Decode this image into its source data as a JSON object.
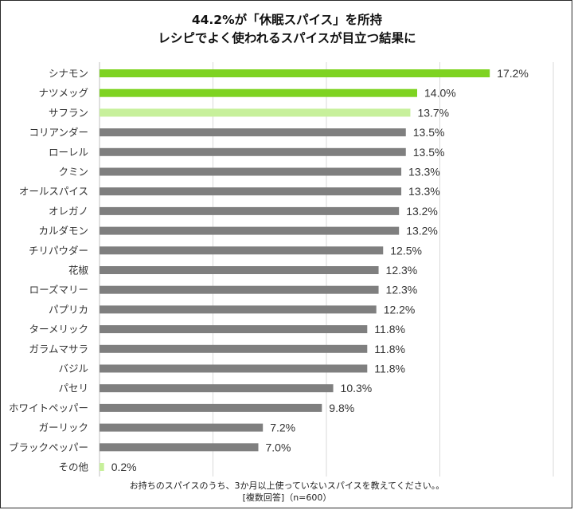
{
  "title_line1": "44.2%が「休眠スパイス」を所持",
  "title_line2": "レシピでよく使われるスパイスが目立つ結果に",
  "footnote_line1": "お持ちのスパイスのうち、3か月以上使っていないスパイスを教えてください。。",
  "footnote_line2": "[複数回答]（n=600）",
  "colors": {
    "highlight": "#7ed321",
    "light_highlight": "#c7f09b",
    "default": "#7f7f7f",
    "gridline": "#d9d9d9"
  },
  "chart_data": {
    "type": "bar",
    "orientation": "horizontal",
    "title": "44.2%が「休眠スパイス」を所持 レシピでよく使われるスパイスが目立つ結果に",
    "categories": [
      "シナモン",
      "ナツメッグ",
      "サフラン",
      "コリアンダー",
      "ローレル",
      "クミン",
      "オールスパイス",
      "オレガノ",
      "カルダモン",
      "チリパウダー",
      "花椒",
      "ローズマリー",
      "パプリカ",
      "ターメリック",
      "ガラムマサラ",
      "バジル",
      "パセリ",
      "ホワイトペッパー",
      "ガーリック",
      "ブラックペッパー",
      "その他"
    ],
    "values": [
      17.2,
      14.0,
      13.7,
      13.5,
      13.5,
      13.3,
      13.3,
      13.2,
      13.2,
      12.5,
      12.3,
      12.3,
      12.2,
      11.8,
      11.8,
      11.8,
      10.3,
      9.8,
      7.2,
      7.0,
      0.2
    ],
    "value_labels": [
      "17.2%",
      "14.0%",
      "13.7%",
      "13.5%",
      "13.5%",
      "13.3%",
      "13.3%",
      "13.2%",
      "13.2%",
      "12.5%",
      "12.3%",
      "12.3%",
      "12.2%",
      "11.8%",
      "11.8%",
      "11.8%",
      "10.3%",
      "9.8%",
      "7.2%",
      "7.0%",
      "0.2%"
    ],
    "bar_colors": [
      "highlight",
      "highlight",
      "light_highlight",
      "default",
      "default",
      "default",
      "default",
      "default",
      "default",
      "default",
      "default",
      "default",
      "default",
      "default",
      "default",
      "default",
      "default",
      "default",
      "default",
      "default",
      "light_highlight"
    ],
    "xlim": [
      0,
      20
    ],
    "grid": true,
    "legend": false
  }
}
